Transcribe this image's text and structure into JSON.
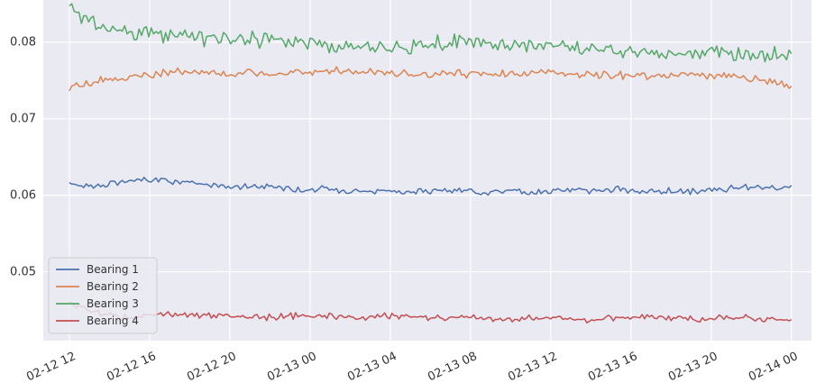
{
  "chart_data": {
    "type": "line",
    "title": "",
    "xlabel": "",
    "ylabel": "",
    "grid": true,
    "legend_position": "lower-left",
    "x_start": "02-12 12",
    "x_end": "02-14 00",
    "xlim_hours": [
      -1.3,
      37.0
    ],
    "ylim": [
      0.041,
      0.0855
    ],
    "x_ticks": [
      {
        "label": "02-12 12",
        "hour": 0
      },
      {
        "label": "02-12 16",
        "hour": 4
      },
      {
        "label": "02-12 20",
        "hour": 8
      },
      {
        "label": "02-13 00",
        "hour": 12
      },
      {
        "label": "02-13 04",
        "hour": 16
      },
      {
        "label": "02-13 08",
        "hour": 20
      },
      {
        "label": "02-13 12",
        "hour": 24
      },
      {
        "label": "02-13 16",
        "hour": 28
      },
      {
        "label": "02-13 20",
        "hour": 32
      },
      {
        "label": "02-14 00",
        "hour": 36
      }
    ],
    "y_ticks": [
      {
        "label": "0.05",
        "value": 0.05
      },
      {
        "label": "0.06",
        "value": 0.06
      },
      {
        "label": "0.07",
        "value": 0.07
      },
      {
        "label": "0.08",
        "value": 0.08
      }
    ],
    "x_hours": [
      0.0,
      1.44,
      2.88,
      4.32,
      5.76,
      7.2,
      8.64,
      10.08,
      11.52,
      12.96,
      14.4,
      15.84,
      17.28,
      18.72,
      20.16,
      21.6,
      23.04,
      24.48,
      25.92,
      27.36,
      28.8,
      30.24,
      31.68,
      33.12,
      34.56,
      36.0
    ],
    "series": [
      {
        "name": "Bearing 1",
        "color": "#4c72b0",
        "amplitude": 0.0006,
        "values": [
          0.0615,
          0.0612,
          0.0618,
          0.0622,
          0.0616,
          0.0613,
          0.0611,
          0.0612,
          0.0607,
          0.0608,
          0.0606,
          0.0605,
          0.0604,
          0.0606,
          0.0605,
          0.0606,
          0.0603,
          0.0608,
          0.0606,
          0.0607,
          0.0605,
          0.0605,
          0.0605,
          0.0608,
          0.061,
          0.061
        ]
      },
      {
        "name": "Bearing 2",
        "color": "#dd8452",
        "amplitude": 0.0008,
        "values": [
          0.074,
          0.0748,
          0.0755,
          0.0758,
          0.0762,
          0.076,
          0.0758,
          0.076,
          0.0762,
          0.0762,
          0.076,
          0.076,
          0.0758,
          0.076,
          0.0758,
          0.0758,
          0.076,
          0.076,
          0.0758,
          0.0758,
          0.0755,
          0.0758,
          0.0755,
          0.0755,
          0.075,
          0.0745
        ]
      },
      {
        "name": "Bearing 3",
        "color": "#55a868",
        "amplitude": 0.0014,
        "values": [
          0.0845,
          0.082,
          0.0815,
          0.0812,
          0.0808,
          0.0805,
          0.0805,
          0.0802,
          0.08,
          0.0795,
          0.0798,
          0.0795,
          0.0795,
          0.0798,
          0.08,
          0.0795,
          0.0795,
          0.0795,
          0.079,
          0.079,
          0.0785,
          0.0785,
          0.0788,
          0.0785,
          0.0782,
          0.0782
        ]
      },
      {
        "name": "Bearing 4",
        "color": "#c44e52",
        "amplitude": 0.0006,
        "values": [
          0.046,
          0.0445,
          0.044,
          0.0445,
          0.0444,
          0.0442,
          0.0442,
          0.044,
          0.0443,
          0.0443,
          0.044,
          0.0443,
          0.044,
          0.044,
          0.044,
          0.0437,
          0.044,
          0.044,
          0.0438,
          0.044,
          0.044,
          0.044,
          0.0438,
          0.044,
          0.0438,
          0.0437
        ]
      }
    ]
  }
}
